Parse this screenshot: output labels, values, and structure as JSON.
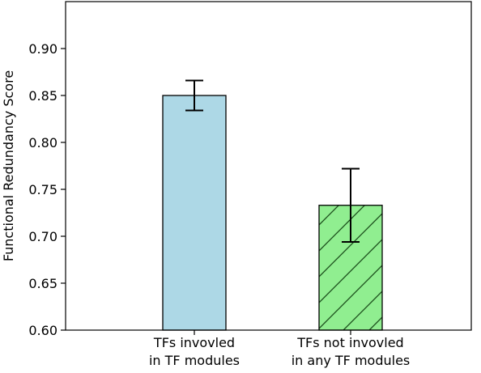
{
  "chart_data": {
    "type": "bar",
    "title": "",
    "xlabel": "",
    "ylabel": "Functional Redundancy Score",
    "ylim": [
      0.6,
      0.95
    ],
    "yticks": [
      "0.60",
      "0.65",
      "0.70",
      "0.75",
      "0.80",
      "0.85",
      "0.90"
    ],
    "grid": false,
    "categories": [
      [
        "TFs invovled",
        "in TF modules"
      ],
      [
        "TFs not invovled",
        "in any TF modules"
      ]
    ],
    "values": [
      0.85,
      0.733
    ],
    "errors": [
      0.016,
      0.039
    ],
    "colors": [
      "#add8e6",
      "#90ee90"
    ],
    "hatch": [
      false,
      true
    ]
  }
}
